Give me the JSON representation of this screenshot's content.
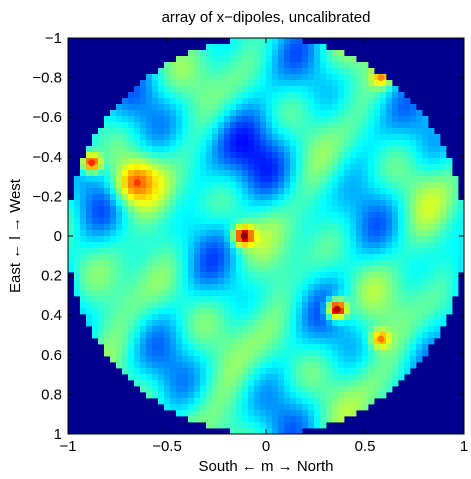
{
  "chart_data": {
    "type": "heatmap",
    "title": "array of x−dipoles, uncalibrated",
    "xlabel": "South ← m → North",
    "ylabel": "East ← l → West",
    "xlim": [
      -1,
      1
    ],
    "ylim": [
      -1,
      1
    ],
    "y_direction": "reversed",
    "x_ticks": [
      {
        "value": -1,
        "label": "−1"
      },
      {
        "value": -0.5,
        "label": "−0.5"
      },
      {
        "value": 0,
        "label": "0"
      },
      {
        "value": 0.5,
        "label": "0.5"
      },
      {
        "value": 1,
        "label": "1"
      }
    ],
    "y_ticks": [
      {
        "value": -1,
        "label": "−1"
      },
      {
        "value": -0.8,
        "label": "−0.8"
      },
      {
        "value": -0.6,
        "label": "−0.6"
      },
      {
        "value": -0.4,
        "label": "−0.4"
      },
      {
        "value": -0.2,
        "label": "−0.2"
      },
      {
        "value": 0,
        "label": "0"
      },
      {
        "value": 0.2,
        "label": "0.2"
      },
      {
        "value": 0.4,
        "label": "0.4"
      },
      {
        "value": 0.6,
        "label": "0.6"
      },
      {
        "value": 0.8,
        "label": "0.8"
      },
      {
        "value": 1,
        "label": "1"
      }
    ],
    "colormap": "jet",
    "background_color": "#00008f",
    "grid": false,
    "legend": "none",
    "sky_region": {
      "shape": "circle",
      "center": [
        0,
        0
      ],
      "radius": 1
    },
    "features": [
      {
        "name": "bright-source-center",
        "m": -0.11,
        "l": 0.0,
        "intensity": 0.95
      },
      {
        "name": "bright-source-north",
        "m": 0.36,
        "l": 0.37,
        "intensity": 0.92
      },
      {
        "name": "warm-region-east",
        "m": -0.65,
        "l": -0.27,
        "intensity": 0.78
      },
      {
        "name": "source-far-east",
        "m": -0.88,
        "l": -0.37,
        "intensity": 0.8
      },
      {
        "name": "source-north-edge",
        "m": 0.58,
        "l": 0.52,
        "intensity": 0.72
      },
      {
        "name": "rim-north-top",
        "m": 0.58,
        "l": -0.8,
        "intensity": 0.7
      }
    ]
  }
}
